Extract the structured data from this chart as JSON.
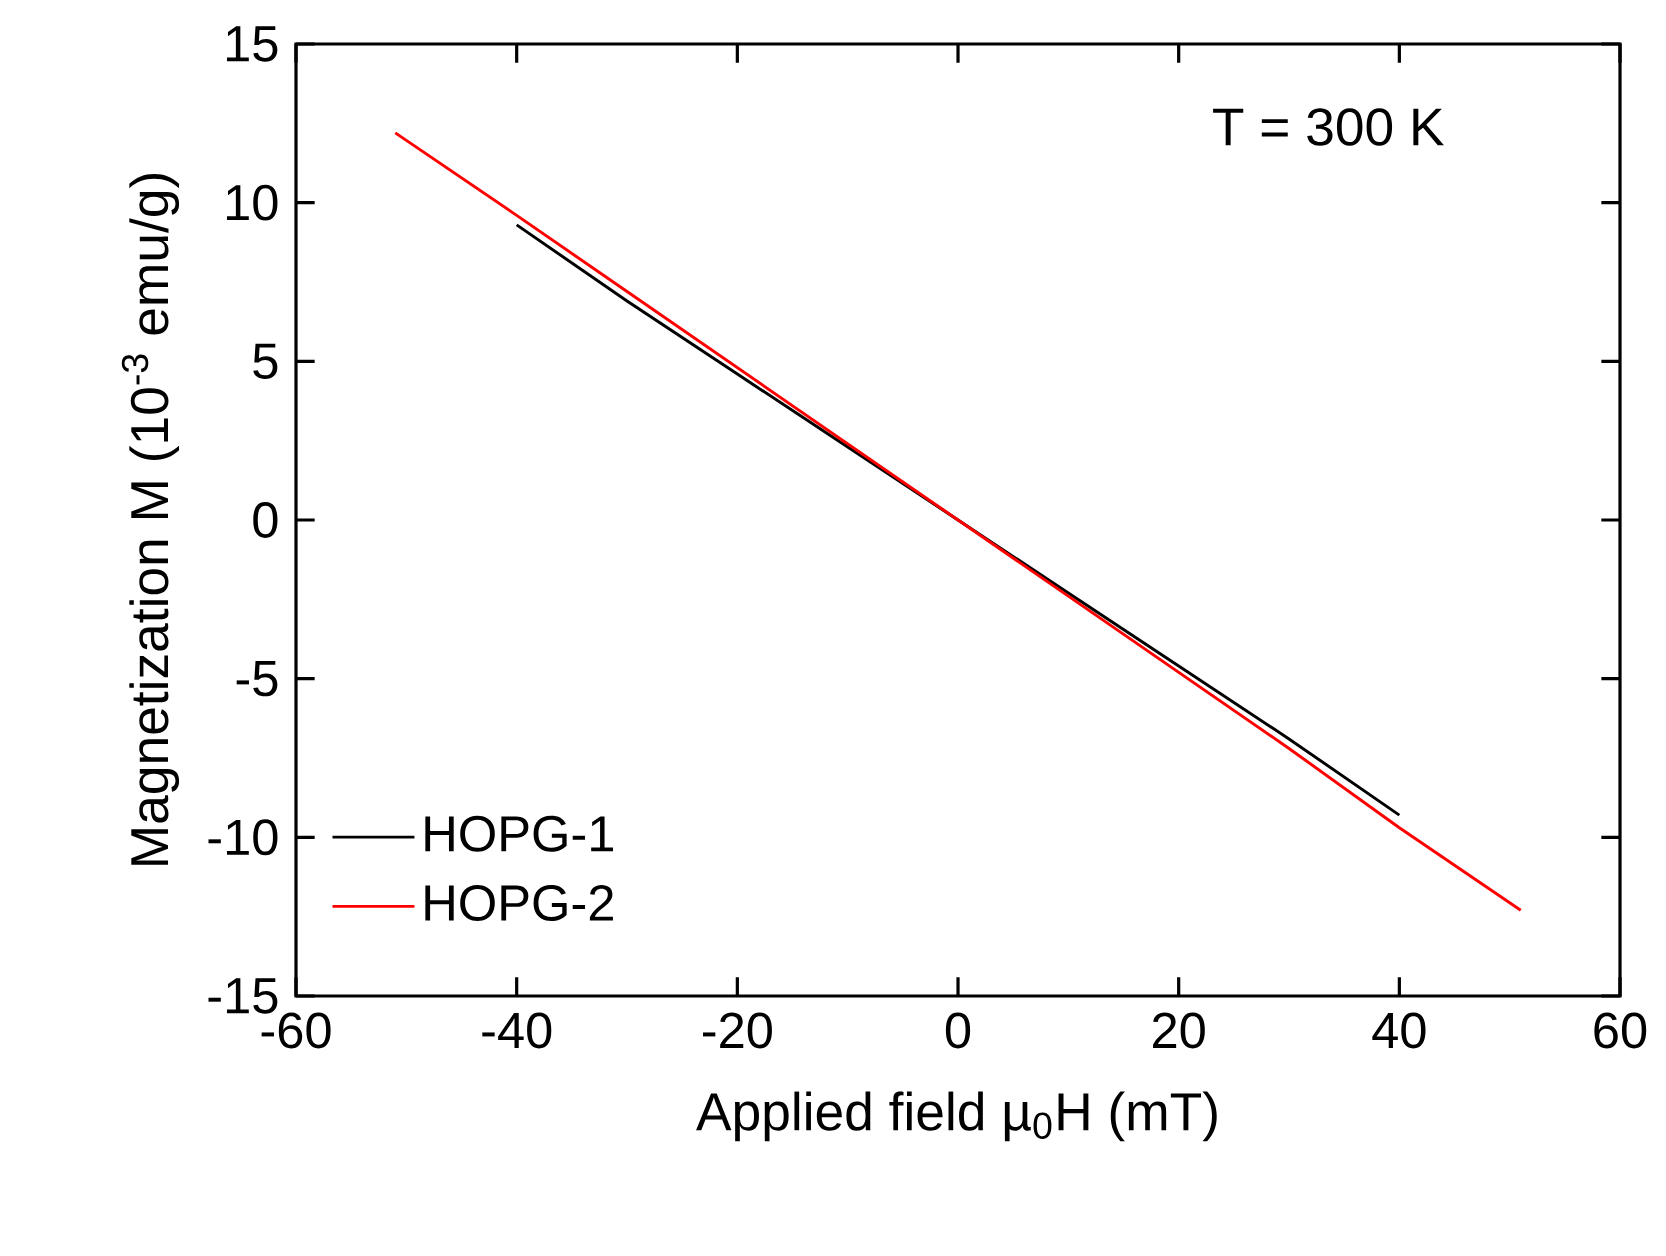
{
  "chart_data": {
    "type": "line",
    "xlabel": "Applied field µ$_{0}$H (mT)",
    "ylabel": "Magnetization M (10$^{-3}$ emu/g)",
    "annotations": [
      "T = 300 K"
    ],
    "series": [
      {
        "name": "HOPG-1",
        "color": "#000000",
        "x": [
          -40,
          -30,
          -20,
          -10,
          0,
          10,
          20,
          30,
          40
        ],
        "values": [
          9.3,
          6.9,
          4.6,
          2.3,
          0.0,
          -2.3,
          -4.6,
          -6.9,
          -9.3
        ]
      },
      {
        "name": "HOPG-2",
        "color": "#ff0000",
        "x": [
          -51,
          -40,
          -30,
          -20,
          -10,
          0,
          10,
          20,
          30,
          40,
          51
        ],
        "values": [
          12.2,
          9.6,
          7.2,
          4.8,
          2.4,
          0.0,
          -2.4,
          -4.8,
          -7.2,
          -9.7,
          -12.3
        ]
      }
    ],
    "xlim": [
      -60,
      60
    ],
    "xticks": [
      -60,
      -40,
      -20,
      0,
      20,
      40,
      60
    ],
    "ylim": [
      -15,
      15
    ],
    "yticks": [
      -15,
      -10,
      -5,
      0,
      5,
      10,
      15
    ],
    "legend": "bottom left",
    "marker": "none",
    "line_style": "solid",
    "grid": false
  }
}
